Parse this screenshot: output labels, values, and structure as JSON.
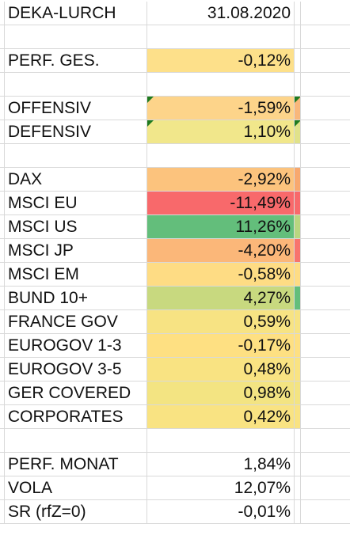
{
  "header": {
    "name": "DEKA-LURCH",
    "date": "31.08.2020"
  },
  "rows": [
    {
      "label": "PERF. GES.",
      "value": "-0,12%",
      "color": "#fde08a",
      "edge": ""
    },
    {
      "label": "OFFENSIV",
      "value": "-1,59%",
      "color": "#fdd48a",
      "edge": "#f8b77b"
    },
    {
      "label": "DEFENSIV",
      "value": "1,10%",
      "color": "#f1e78b",
      "edge": "#e0e28a"
    },
    {
      "label": "DAX",
      "value": "-2,92%",
      "color": "#fcc37d",
      "edge": "#f8a86e"
    },
    {
      "label": "MSCI EU",
      "value": "-11,49%",
      "color": "#f8696b",
      "edge": "#f8696b"
    },
    {
      "label": "MSCI US",
      "value": "11,26%",
      "color": "#63be7b",
      "edge": "#b9d680"
    },
    {
      "label": "MSCI JP",
      "value": "-4,20%",
      "color": "#fbb779",
      "edge": "#f8736d"
    },
    {
      "label": "MSCI EM",
      "value": "-0,58%",
      "color": "#fedc84",
      "edge": "#fedc84"
    },
    {
      "label": "BUND 10+",
      "value": "4,27%",
      "color": "#c8d97f",
      "edge": "#63be7b"
    },
    {
      "label": "FRANCE GOV",
      "value": "0,59%",
      "color": "#f7e383",
      "edge": "#f7e383"
    },
    {
      "label": "EUROGOV 1-3",
      "value": "-0,17%",
      "color": "#fee082",
      "edge": "#fee082"
    },
    {
      "label": "EUROGOV 3-5",
      "value": "0,48%",
      "color": "#f9e382",
      "edge": "#f9e382"
    },
    {
      "label": "GER COVERED",
      "value": "0,98%",
      "color": "#f3e482",
      "edge": "#f3e482"
    },
    {
      "label": "CORPORATES",
      "value": "0,42%",
      "color": "#f9e382",
      "edge": "#f9e382"
    },
    {
      "label": "PERF. MONAT",
      "value": "1,84%",
      "color": "",
      "edge": ""
    },
    {
      "label": "VOLA",
      "value": "12,07%",
      "color": "",
      "edge": ""
    },
    {
      "label": "SR (rfZ=0)",
      "value": "-0,01%",
      "color": "",
      "edge": ""
    }
  ]
}
